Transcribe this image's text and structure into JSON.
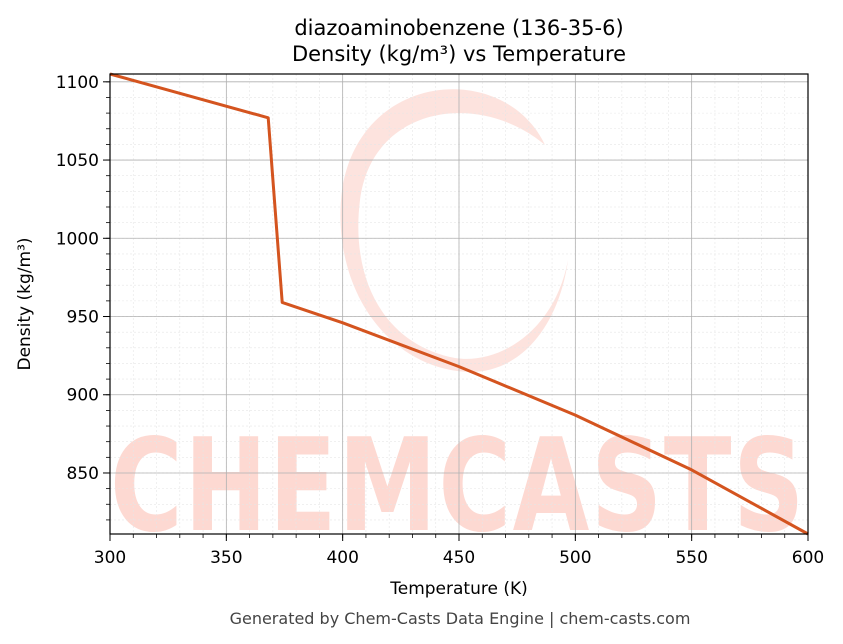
{
  "chart_data": {
    "type": "line",
    "title_line1": "diazoaminobenzene (136-35-6)",
    "title_line2": "Density (kg/m³) vs Temperature",
    "xlabel": "Temperature (K)",
    "ylabel": "Density (kg/m³)",
    "xlim": [
      300,
      600
    ],
    "ylim": [
      811,
      1105
    ],
    "xticks": [
      300,
      350,
      400,
      450,
      500,
      550,
      600
    ],
    "yticks": [
      850,
      900,
      950,
      1000,
      1050,
      1100
    ],
    "grid": true,
    "color": "#d4541f",
    "series": [
      {
        "x": [
          300,
          368,
          374,
          400,
          450,
          500,
          550,
          600
        ],
        "y": [
          1105,
          1077,
          959,
          946,
          918,
          887,
          852,
          811
        ]
      }
    ]
  },
  "watermark": "CHEMCASTS",
  "footer": "Generated by Chem-Casts Data Engine | chem-casts.com"
}
